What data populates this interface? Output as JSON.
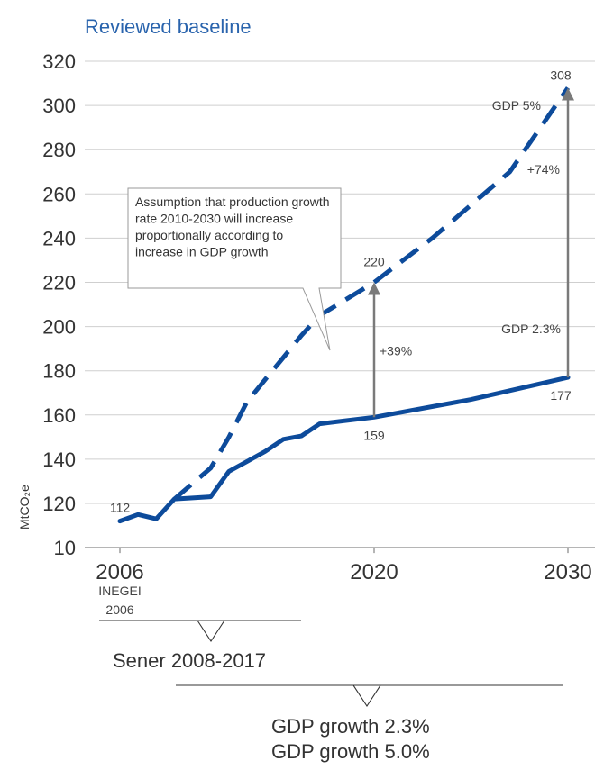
{
  "chart_data": {
    "type": "line",
    "title": "Reviewed baseline",
    "ylabel": "MtCO₂e",
    "y_ticks": [
      "10",
      "120",
      "140",
      "160",
      "180",
      "200",
      "220",
      "240",
      "260",
      "280",
      "300",
      "320"
    ],
    "x_ticks": [
      "2006",
      "2020",
      "2030"
    ],
    "x_sublabel": [
      "INEGEI",
      "2006"
    ],
    "series": [
      {
        "name": "GDP 2.3%",
        "style": "solid",
        "color": "#0d4b9b",
        "points": [
          [
            2006,
            112
          ],
          [
            2007,
            115
          ],
          [
            2008,
            113
          ],
          [
            2009,
            122
          ],
          [
            2010,
            122.5
          ],
          [
            2011,
            123
          ],
          [
            2012,
            134.5
          ],
          [
            2013,
            139
          ],
          [
            2014,
            143.5
          ],
          [
            2015,
            149
          ],
          [
            2016,
            150.5
          ],
          [
            2017,
            156
          ],
          [
            2020,
            159
          ],
          [
            2025,
            167
          ],
          [
            2030,
            177
          ]
        ]
      },
      {
        "name": "GDP 5%",
        "style": "dashed",
        "color": "#0d4b9b",
        "points": [
          [
            2009,
            122
          ],
          [
            2011,
            136
          ],
          [
            2012,
            150
          ],
          [
            2013,
            166
          ],
          [
            2014,
            176
          ],
          [
            2015,
            186
          ],
          [
            2016,
            196
          ],
          [
            2017,
            205
          ],
          [
            2020,
            220
          ],
          [
            2023,
            240
          ],
          [
            2027,
            270
          ],
          [
            2030,
            308
          ]
        ]
      }
    ],
    "data_labels": [
      {
        "text": "112",
        "x": 2006,
        "y": 112
      },
      {
        "text": "159",
        "x": 2020,
        "y": 159
      },
      {
        "text": "220",
        "x": 2020,
        "y": 220
      },
      {
        "text": "177",
        "x": 2030,
        "y": 177
      },
      {
        "text": "308",
        "x": 2030,
        "y": 308
      }
    ],
    "arrows": [
      {
        "x": 2020,
        "from": 159,
        "to": 220,
        "label": "+39%"
      },
      {
        "x": 2030,
        "from": 177,
        "to": 308,
        "label": "+74%"
      }
    ],
    "series_labels": [
      "GDP 5%",
      "GDP 2.3%"
    ],
    "annotation": "Assumption that production growth rate 2010-2030 will increase proportionally according to increase in GDP growth",
    "braces": [
      {
        "label": "Sener 2008-2017"
      },
      {
        "label_lines": [
          "GDP growth 2.3%",
          "GDP growth 5.0%"
        ]
      }
    ],
    "grid": true
  }
}
